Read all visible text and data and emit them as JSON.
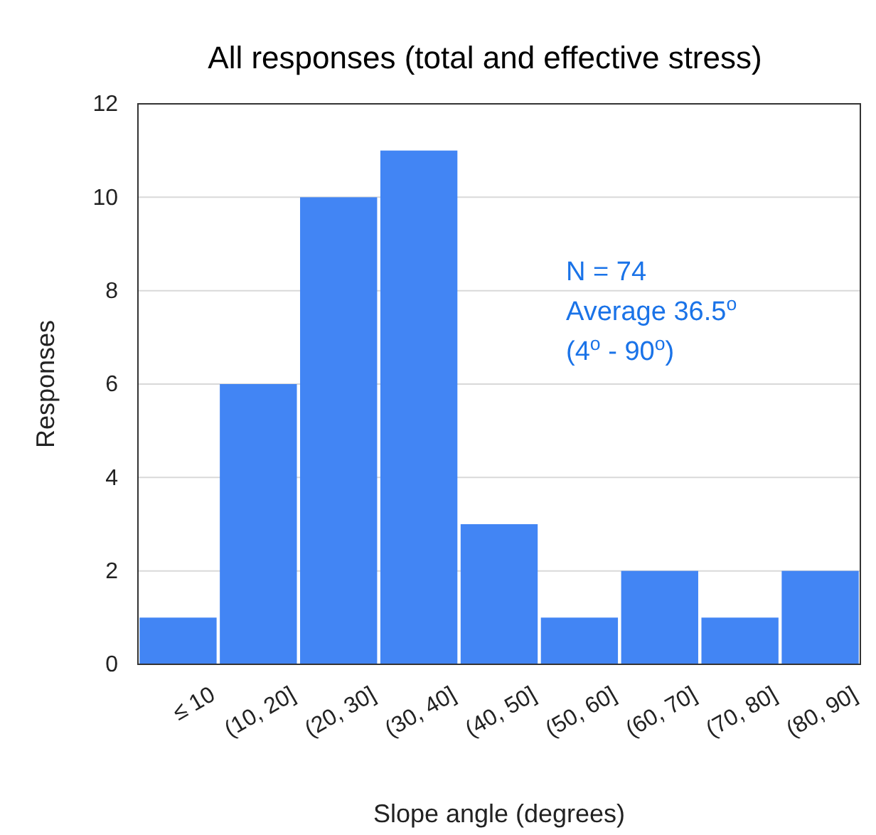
{
  "chart_data": {
    "type": "bar",
    "title": "All responses (total and effective stress)",
    "xlabel": "Slope angle (degrees)",
    "ylabel": "Responses",
    "categories": [
      "≤ 10",
      "(10, 20]",
      "(20, 30]",
      "(30, 40]",
      "(40, 50]",
      "(50, 60]",
      "(60, 70]",
      "(70, 80]",
      "(80, 90]"
    ],
    "values": [
      1,
      6,
      10,
      11,
      3,
      1,
      2,
      1,
      2
    ],
    "color": "#4285f4",
    "ylim": [
      0,
      12
    ],
    "yticks": [
      0,
      2,
      4,
      6,
      8,
      10,
      12
    ],
    "grid": "y",
    "annotations": [
      "N = 74",
      "Average 36.5$^{o}$",
      "(4$^{o}$ - 90$^{o}$)"
    ]
  }
}
